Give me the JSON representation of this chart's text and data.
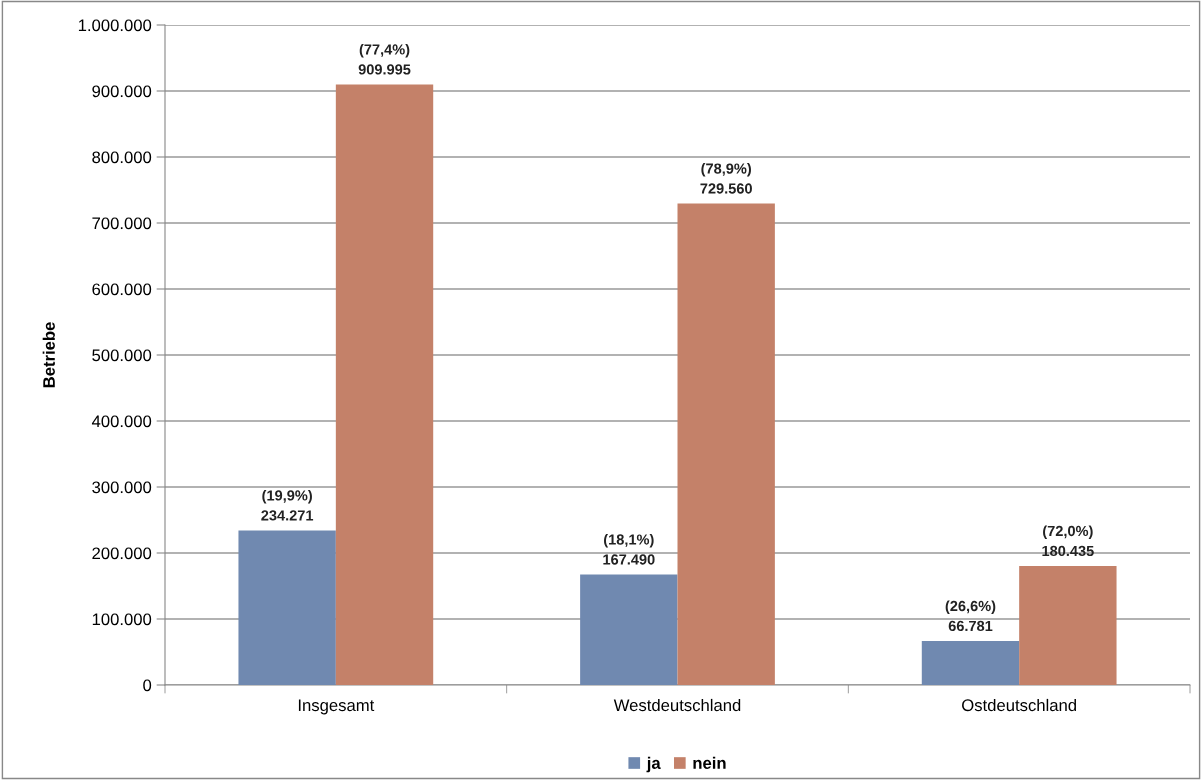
{
  "chart_data": {
    "type": "bar",
    "ylabel": "Betriebe",
    "categories": [
      "Insgesamt",
      "Westdeutschland",
      "Ostdeutschland"
    ],
    "series": [
      {
        "name": "ja",
        "color": "#7089b0",
        "values": [
          234271,
          167490,
          66781
        ],
        "value_labels": [
          "(19,9%)\n234.271",
          "(18,1%)\n167.490",
          "(26,6%)\n66.781"
        ]
      },
      {
        "name": "nein",
        "color": "#c48169",
        "values": [
          909995,
          729560,
          180435
        ],
        "value_labels": [
          "(77,4%)\n909.995",
          "(78,9%)\n729.560",
          "(72,0%)\n180.435"
        ]
      }
    ],
    "ylim": [
      0,
      1000000
    ],
    "yticks": [
      {
        "value": 0,
        "label": "0"
      },
      {
        "value": 100000,
        "label": "100.000"
      },
      {
        "value": 200000,
        "label": "200.000"
      },
      {
        "value": 300000,
        "label": "300.000"
      },
      {
        "value": 400000,
        "label": "400.000"
      },
      {
        "value": 500000,
        "label": "500.000"
      },
      {
        "value": 600000,
        "label": "600.000"
      },
      {
        "value": 700000,
        "label": "700.000"
      },
      {
        "value": 800000,
        "label": "800.000"
      },
      {
        "value": 900000,
        "label": "900.000"
      },
      {
        "value": 1000000,
        "label": "1.000.000"
      }
    ],
    "grid": "y",
    "legend": "bottom"
  }
}
